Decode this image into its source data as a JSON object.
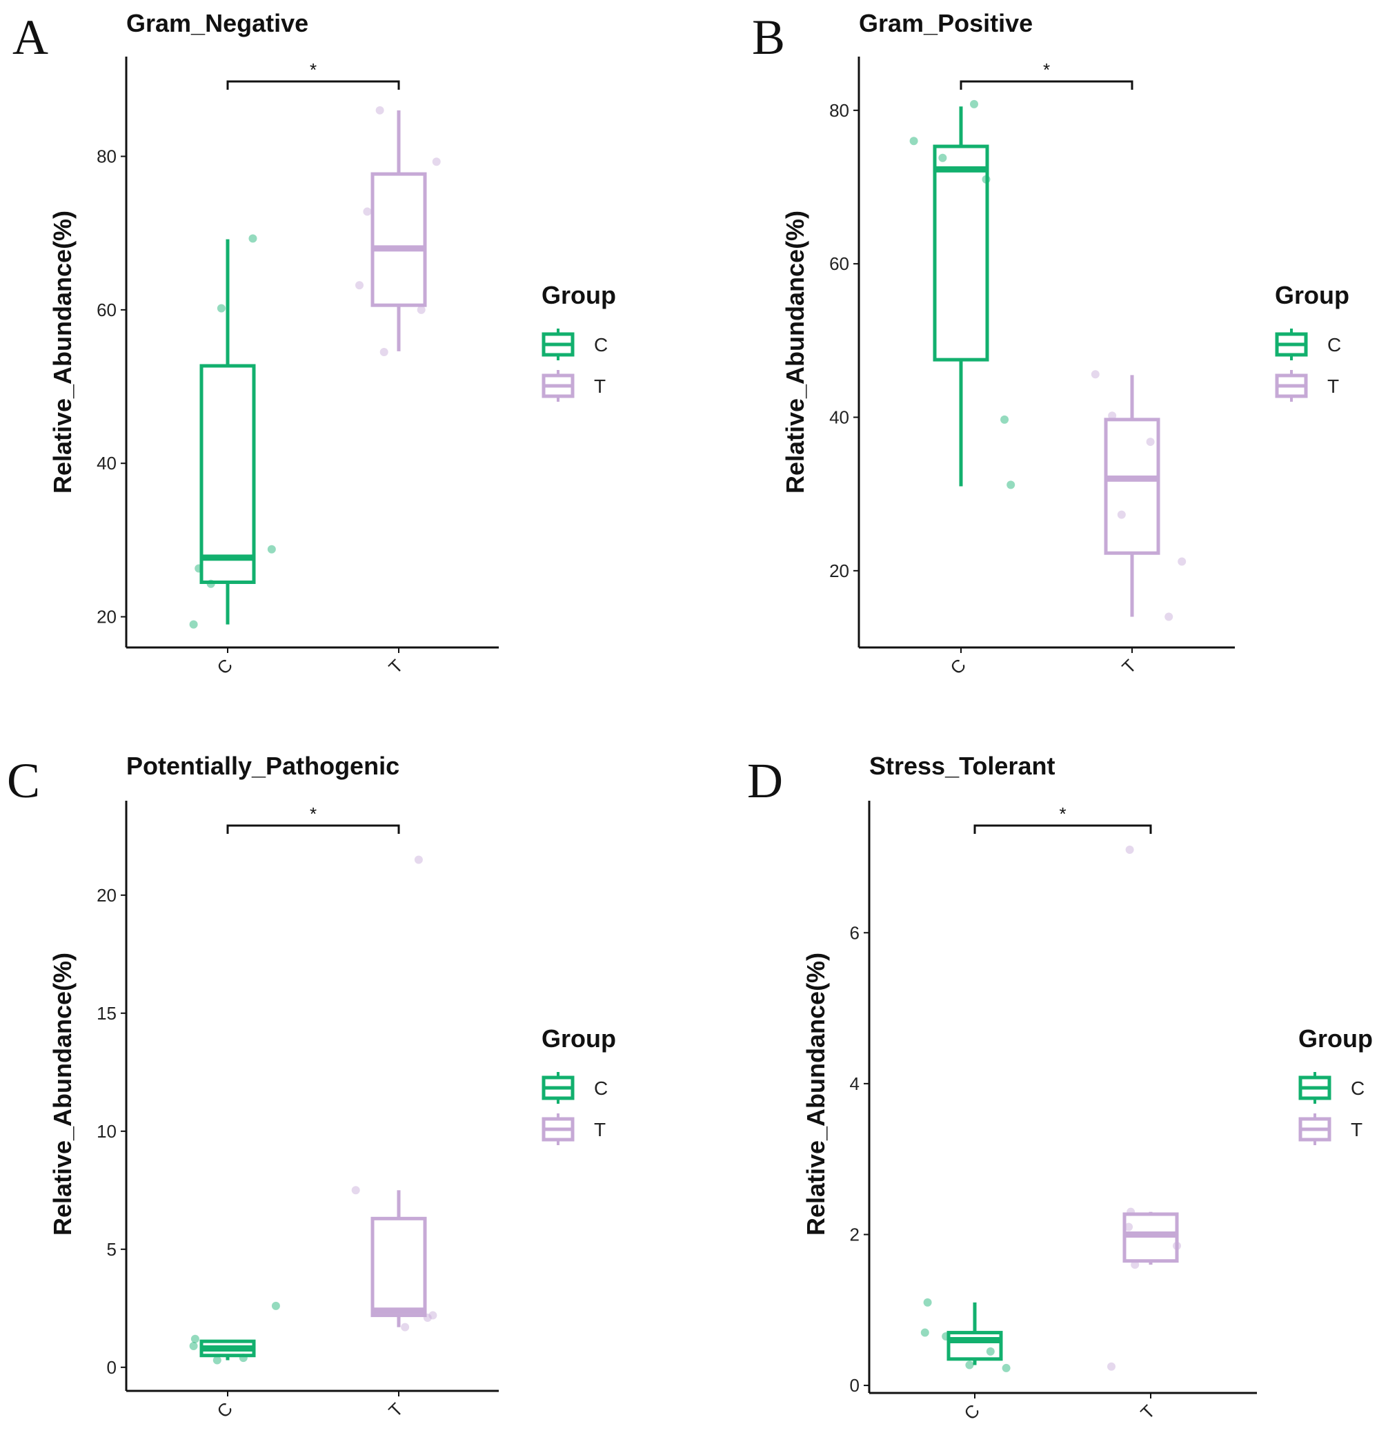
{
  "colors": {
    "C": "#12b06e",
    "T": "#c6a9d6",
    "axis": "#111111"
  },
  "legend": {
    "title": "Group",
    "items": [
      "C",
      "T"
    ]
  },
  "chart_data": [
    {
      "panel": "A",
      "type": "box",
      "title": "Gram_Negative",
      "ylabel": "Relative_Abundance(%)",
      "xlabel": "",
      "categories": [
        "C",
        "T"
      ],
      "ylim": [
        16,
        93
      ],
      "yticks": [
        20,
        40,
        60,
        80
      ],
      "significance": "*",
      "boxes": [
        {
          "group": "C",
          "whisker_low": 19,
          "q1": 24.5,
          "median": 27.7,
          "q3": 52.7,
          "whisker_high": 69.2,
          "points": [
            [
              -0.65,
              19
            ],
            [
              -0.55,
              26.3
            ],
            [
              -0.32,
              24.3
            ],
            [
              -0.12,
              60.2
            ],
            [
              0.48,
              69.3
            ],
            [
              0.84,
              28.8
            ]
          ]
        },
        {
          "group": "T",
          "whisker_low": 54.6,
          "q1": 60.6,
          "median": 68.0,
          "q3": 77.7,
          "whisker_high": 86.0,
          "points": [
            [
              -0.75,
              63.2
            ],
            [
              -0.6,
              72.8
            ],
            [
              -0.36,
              86.0
            ],
            [
              -0.28,
              54.5
            ],
            [
              0.43,
              60.0
            ],
            [
              0.72,
              79.3
            ]
          ]
        }
      ]
    },
    {
      "panel": "B",
      "type": "box",
      "title": "Gram_Positive",
      "ylabel": "Relative_Abundance(%)",
      "xlabel": "",
      "categories": [
        "C",
        "T"
      ],
      "ylim": [
        10,
        87
      ],
      "yticks": [
        20,
        40,
        60,
        80
      ],
      "significance": "*",
      "boxes": [
        {
          "group": "C",
          "whisker_low": 31,
          "q1": 47.5,
          "median": 72.3,
          "q3": 75.3,
          "whisker_high": 80.5,
          "points": [
            [
              -0.9,
              76.0
            ],
            [
              -0.35,
              73.8
            ],
            [
              0.25,
              80.8
            ],
            [
              0.48,
              71.0
            ],
            [
              0.83,
              39.7
            ],
            [
              0.95,
              31.2
            ]
          ]
        },
        {
          "group": "T",
          "whisker_low": 14,
          "q1": 22.3,
          "median": 32.0,
          "q3": 39.7,
          "whisker_high": 45.5,
          "points": [
            [
              -0.7,
              45.6
            ],
            [
              -0.38,
              40.2
            ],
            [
              -0.2,
              27.3
            ],
            [
              0.35,
              36.8
            ],
            [
              0.7,
              14.0
            ],
            [
              0.95,
              21.2
            ]
          ]
        }
      ]
    },
    {
      "panel": "C",
      "type": "box",
      "title": "Potentially_Pathogenic",
      "ylabel": "Relative_Abundance(%)",
      "xlabel": "",
      "categories": [
        "C",
        "T"
      ],
      "ylim": [
        -1,
        24
      ],
      "yticks": [
        0,
        5,
        10,
        15,
        20
      ],
      "significance": "*",
      "boxes": [
        {
          "group": "C",
          "whisker_low": 0.3,
          "q1": 0.5,
          "median": 0.8,
          "q3": 1.1,
          "whisker_high": 1.1,
          "points": [
            [
              -0.65,
              0.9
            ],
            [
              -0.62,
              1.2
            ],
            [
              -0.2,
              0.3
            ],
            [
              0.3,
              0.4
            ],
            [
              0.92,
              2.6
            ]
          ]
        },
        {
          "group": "T",
          "whisker_low": 1.7,
          "q1": 2.2,
          "median": 2.4,
          "q3": 6.3,
          "whisker_high": 7.5,
          "points": [
            [
              -0.82,
              7.5
            ],
            [
              0.12,
              1.7
            ],
            [
              0.55,
              2.1
            ],
            [
              0.65,
              2.2
            ],
            [
              0.38,
              21.5
            ]
          ]
        }
      ]
    },
    {
      "panel": "D",
      "type": "box",
      "title": "Stress_Tolerant",
      "ylabel": "Relative_Abundance(%)",
      "xlabel": "",
      "categories": [
        "C",
        "T"
      ],
      "ylim": [
        -0.1,
        7.75
      ],
      "yticks": [
        0,
        2,
        4,
        6
      ],
      "significance": "*",
      "boxes": [
        {
          "group": "C",
          "whisker_low": 0.27,
          "q1": 0.35,
          "median": 0.6,
          "q3": 0.7,
          "whisker_high": 1.1,
          "points": [
            [
              -0.9,
              1.1
            ],
            [
              -0.95,
              0.7
            ],
            [
              -0.55,
              0.65
            ],
            [
              -0.1,
              0.27
            ],
            [
              0.3,
              0.45
            ],
            [
              0.6,
              0.23
            ]
          ]
        },
        {
          "group": "T",
          "whisker_low": 1.6,
          "q1": 1.65,
          "median": 2.0,
          "q3": 2.27,
          "whisker_high": 2.3,
          "points": [
            [
              -0.75,
              0.25
            ],
            [
              -0.42,
              2.1
            ],
            [
              -0.38,
              2.3
            ],
            [
              -0.3,
              1.6
            ],
            [
              0.5,
              1.85
            ],
            [
              -0.4,
              7.1
            ]
          ]
        }
      ]
    }
  ]
}
